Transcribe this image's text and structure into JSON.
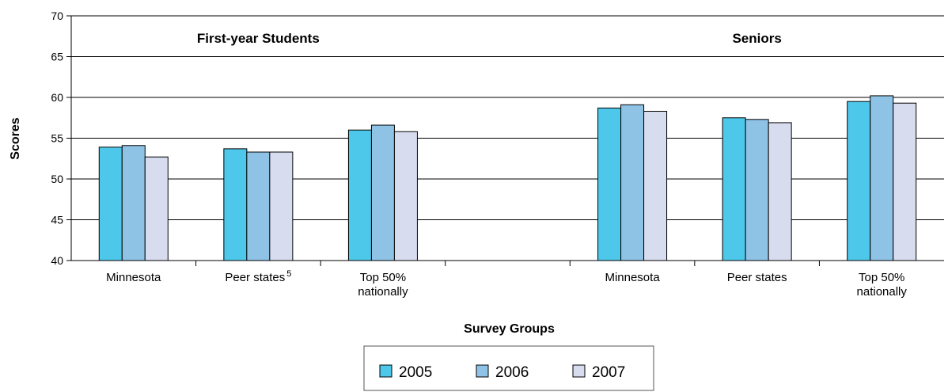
{
  "chart_data": {
    "type": "bar",
    "xlabel": "Survey Groups",
    "ylabel": "Scores",
    "ylim": [
      40,
      70
    ],
    "yticks": [
      40,
      45,
      50,
      55,
      60,
      65,
      70
    ],
    "grid": "horizontal",
    "legend_position": "bottom-center",
    "group_titles": [
      "First-year Students",
      "Seniors"
    ],
    "categories": [
      {
        "label": [
          "Minnesota"
        ],
        "sup": ""
      },
      {
        "label": [
          "Peer states"
        ],
        "sup": "5"
      },
      {
        "label": [
          "Top 50%",
          "nationally"
        ],
        "sup": ""
      },
      {
        "label": [
          ""
        ],
        "sup": ""
      },
      {
        "label": [
          "Minnesota"
        ],
        "sup": ""
      },
      {
        "label": [
          "Peer states"
        ],
        "sup": ""
      },
      {
        "label": [
          "Top 50%",
          "nationally"
        ],
        "sup": ""
      }
    ],
    "series": [
      {
        "name": "2005",
        "color": "#4dc8ea",
        "values": [
          53.9,
          53.7,
          56.0,
          null,
          58.7,
          57.5,
          59.5
        ]
      },
      {
        "name": "2006",
        "color": "#8fc3e6",
        "values": [
          54.1,
          53.3,
          56.6,
          null,
          59.1,
          57.3,
          60.2
        ]
      },
      {
        "name": "2007",
        "color": "#d8dcef",
        "values": [
          52.7,
          53.3,
          55.8,
          null,
          58.3,
          56.9,
          59.3
        ]
      }
    ]
  }
}
